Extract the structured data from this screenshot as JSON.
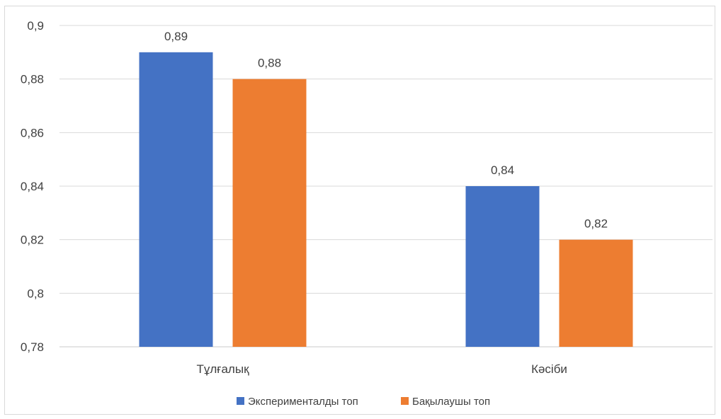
{
  "chart_data": {
    "type": "bar",
    "categories": [
      "Тұлғалық",
      "Кәсіби"
    ],
    "series": [
      {
        "name": "Экспериментал­ды топ",
        "color": "#4472c4",
        "values": [
          0.89,
          0.84
        ],
        "labels": [
          "0,89",
          "0,84"
        ]
      },
      {
        "name": "Бақылаушы топ",
        "color": "#ed7d31",
        "values": [
          0.88,
          0.82
        ],
        "labels": [
          "0,88",
          "0,82"
        ]
      }
    ],
    "title": "",
    "xlabel": "",
    "ylabel": "",
    "ylim": [
      0.78,
      0.9
    ],
    "yticks": [
      0.78,
      0.8,
      0.82,
      0.84,
      0.86,
      0.88,
      0.9
    ],
    "ytick_labels": [
      "0,78",
      "0,8",
      "0,82",
      "0,84",
      "0,86",
      "0,88",
      "0,9"
    ],
    "grid": true,
    "legend_position": "bottom"
  }
}
